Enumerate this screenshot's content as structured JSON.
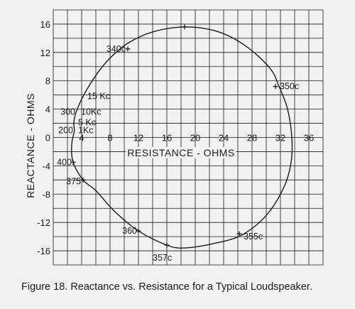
{
  "caption": "Figure 18.  Reactance vs. Resistance for a Typical Loudspeaker.",
  "chart_data": {
    "type": "line",
    "title": "",
    "xlabel": "RESISTANCE - OHMS",
    "ylabel": "REACTANCE - OHMS",
    "xlim": [
      0,
      38
    ],
    "ylim": [
      -18,
      18
    ],
    "x_ticks": [
      4,
      8,
      12,
      16,
      20,
      24,
      28,
      32,
      36
    ],
    "x_tick_labels": [
      "4",
      "8",
      "12",
      "16",
      "20",
      "24",
      "28",
      "32",
      "36"
    ],
    "y_ticks": [
      16,
      12,
      8,
      4,
      0,
      -4,
      -8,
      -12,
      -16
    ],
    "y_tick_labels": [
      "16",
      "12",
      "8",
      "4",
      "0",
      "-4",
      "-8",
      "-12",
      "-16"
    ],
    "grid": true,
    "colors": {
      "line": "#1a1a1a",
      "grid": "#1a1a1a",
      "background": "#f1f1f1"
    },
    "series": [
      {
        "points": [
          {
            "x": 3.0,
            "y": 1.0
          },
          {
            "x": 2.9,
            "y": 2.1
          },
          {
            "x": 3.2,
            "y": 3.5
          },
          {
            "x": 4.2,
            "y": 5.8
          },
          {
            "x": 6.1,
            "y": 8.9
          },
          {
            "x": 8.0,
            "y": 11.2
          },
          {
            "x": 10.5,
            "y": 13.3
          },
          {
            "x": 14.0,
            "y": 14.9
          },
          {
            "x": 18.5,
            "y": 15.6
          },
          {
            "x": 23.0,
            "y": 15.0
          },
          {
            "x": 27.0,
            "y": 13.0
          },
          {
            "x": 30.5,
            "y": 9.8
          },
          {
            "x": 31.8,
            "y": 7.2
          },
          {
            "x": 33.0,
            "y": 4.0
          },
          {
            "x": 33.6,
            "y": 0.0
          },
          {
            "x": 33.5,
            "y": -3.5
          },
          {
            "x": 32.5,
            "y": -7.0
          },
          {
            "x": 30.0,
            "y": -11.0
          },
          {
            "x": 26.5,
            "y": -13.8
          },
          {
            "x": 22.5,
            "y": -15.0
          },
          {
            "x": 18.5,
            "y": -15.6
          },
          {
            "x": 16.0,
            "y": -15.2
          },
          {
            "x": 12.0,
            "y": -13.2
          },
          {
            "x": 8.5,
            "y": -10.3
          },
          {
            "x": 6.0,
            "y": -7.5
          },
          {
            "x": 4.2,
            "y": -6.0
          },
          {
            "x": 2.8,
            "y": -3.5
          },
          {
            "x": 2.6,
            "y": -1.0
          },
          {
            "x": 3.0,
            "y": 1.0
          }
        ]
      }
    ],
    "annotations": [
      {
        "text": "340c",
        "x": 10.5,
        "y": 12.5,
        "anchor": "end",
        "dx": -3,
        "dy": 0
      },
      {
        "text": "350c",
        "x": 31.3,
        "y": 7.2,
        "anchor": "start",
        "dx": 6,
        "dy": 0
      },
      {
        "text": "15 Kc",
        "x": 4.4,
        "y": 5.8,
        "anchor": "start",
        "dx": 4,
        "dy": 0
      },
      {
        "text": "300",
        "x": 3.2,
        "y": 3.6,
        "anchor": "end",
        "dx": -1,
        "dy": 0
      },
      {
        "text": "10Kc",
        "x": 3.5,
        "y": 3.6,
        "anchor": "start",
        "dx": 4,
        "dy": 0
      },
      {
        "text": "5 Kc",
        "x": 3.1,
        "y": 2.1,
        "anchor": "start",
        "dx": 4,
        "dy": 0
      },
      {
        "text": "200",
        "x": 2.9,
        "y": 1.0,
        "anchor": "end",
        "dx": -1,
        "dy": 0
      },
      {
        "text": "1Kc",
        "x": 3.1,
        "y": 1.0,
        "anchor": "start",
        "dx": 4,
        "dy": 0
      },
      {
        "text": "400",
        "x": 2.8,
        "y": -3.5,
        "anchor": "end",
        "dx": -2,
        "dy": 0
      },
      {
        "text": "375",
        "x": 4.2,
        "y": -6.0,
        "anchor": "end",
        "dx": -3,
        "dy": 2
      },
      {
        "text": "360",
        "x": 12.0,
        "y": -13.2,
        "anchor": "end",
        "dx": -2,
        "dy": 0
      },
      {
        "text": "357c",
        "x": 16.0,
        "y": -15.2,
        "anchor": "start",
        "dx": -20,
        "dy": 18
      },
      {
        "text": "355c",
        "x": 26.2,
        "y": -13.6,
        "anchor": "start",
        "dx": 6,
        "dy": 4
      }
    ],
    "markers": [
      {
        "x": 18.5,
        "y": 15.6
      },
      {
        "x": 10.5,
        "y": 12.5
      },
      {
        "x": 31.3,
        "y": 7.2
      },
      {
        "x": 2.8,
        "y": -3.5
      },
      {
        "x": 4.2,
        "y": -6.0
      },
      {
        "x": 12.0,
        "y": -13.2
      },
      {
        "x": 16.0,
        "y": -15.2
      },
      {
        "x": 26.2,
        "y": -13.6
      }
    ]
  }
}
